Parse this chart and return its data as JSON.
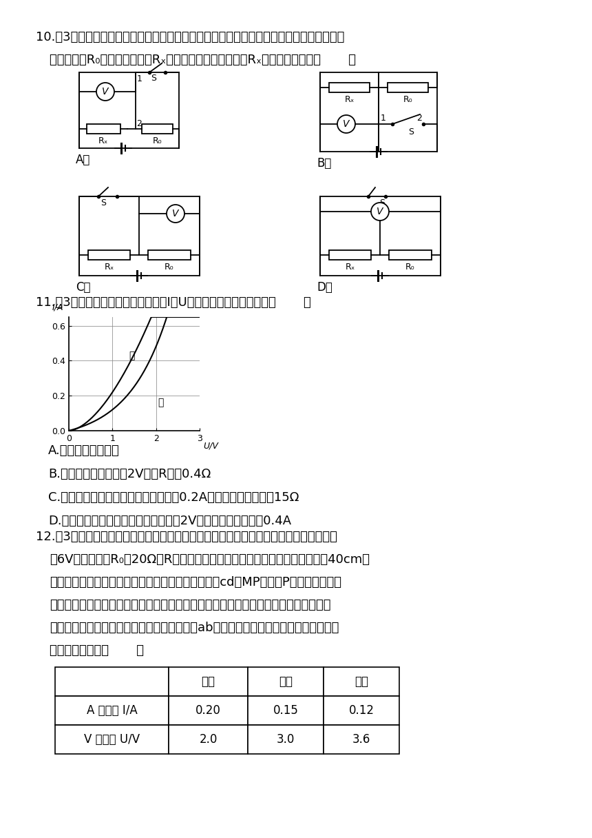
{
  "bg_color": "#ffffff",
  "text_color": "#000000",
  "q10_text1": "10.（3分）某同学在没有电流表的情况下（电源电压未知但不变），利用电压表和已知阔值",
  "q10_text2": "的定値电阔R₀，测量未知电阔Rₓ阔值，图中不能实现测量Rₓ阔值的电路图是（       ）",
  "q11_text": "11.（3分）如图所示是电阔甲和乙的I－U图象，下列说法正确的是（       ）",
  "q11_A": "A.电阔乙为定値电阔",
  "q11_B": "B.当电阔甲两端电压为2V时，R甲＝0.4Ω",
  "q11_C": "C.只将电阔甲和乙串联，若电路电流为0.2A时，则电路总电阔为15Ω",
  "q11_D": "D.只将电阔甲和乙并联，若电源电压为2V时，则电路总电流为0.4A",
  "q12_text1": "12.（3分）如图所示是小明设计的一个简易电子身高测量仪的示意图。其中，电源电压恒",
  "q12_text2": "为6V，保护电阔R₀＝20Ω；R是一只固定着的、竖直放置的硬电阔棒、总长为40cm，",
  "q12_text3": "其接入电路的电阔与接入电路的棒长成正比；金属杆cd和MP（右端P是滑片）与电路",
  "q12_text4": "接触良好，电阔不计。小明用该测量仪对小聪、小英和小亮的身高进行了测量，其数据",
  "q12_text5": "见下表。若已知小英测量时，滑片恰在电阔棒ab的中点位置，根据题中提供的信息，以",
  "q12_text6": "下说法错误的是（       ）",
  "table_headers": [
    "",
    "小聪",
    "小英",
    "小亮"
  ],
  "table_row1": [
    "A 表示数 I/A",
    "0.20",
    "0.15",
    "0.12"
  ],
  "table_row2": [
    "V 表示数 U/V",
    "2.0",
    "3.0",
    "3.6"
  ]
}
